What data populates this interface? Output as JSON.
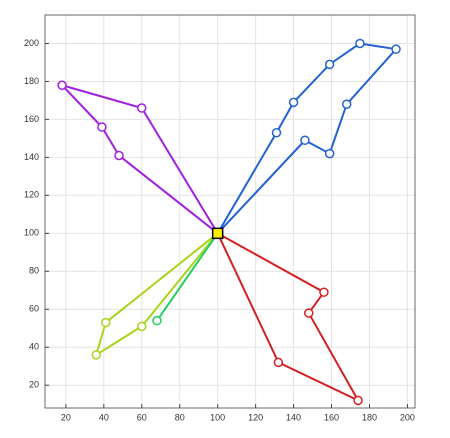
{
  "chart_data": {
    "type": "line",
    "xlim": [
      9,
      204
    ],
    "ylim": [
      8,
      215
    ],
    "xticks": [
      20,
      40,
      60,
      80,
      100,
      120,
      140,
      160,
      180,
      200
    ],
    "yticks": [
      20,
      40,
      60,
      80,
      100,
      120,
      140,
      160,
      180,
      200
    ],
    "grid": true,
    "center": {
      "x": 100,
      "y": 100,
      "color": "#ffee00"
    },
    "series": [
      {
        "color": "#a020e0",
        "x": [
          100,
          60,
          18,
          39,
          48,
          100
        ],
        "values": [
          100,
          166,
          178,
          156,
          141,
          100
        ]
      },
      {
        "color": "#2262d2",
        "x": [
          100,
          131,
          140,
          159,
          175,
          194,
          168,
          159,
          146,
          100
        ],
        "values": [
          100,
          153,
          169,
          189,
          200,
          197,
          168,
          142,
          149,
          100
        ]
      },
      {
        "color": "#d42020",
        "x": [
          100,
          156,
          148,
          174,
          132,
          100
        ],
        "values": [
          100,
          69,
          58,
          12,
          32,
          100
        ]
      },
      {
        "color": "#a8d418",
        "x": [
          100,
          41,
          36,
          60,
          100
        ],
        "values": [
          100,
          53,
          36,
          51,
          100
        ]
      },
      {
        "color": "#22d060",
        "x": [
          100,
          68
        ],
        "values": [
          100,
          54
        ]
      }
    ]
  }
}
